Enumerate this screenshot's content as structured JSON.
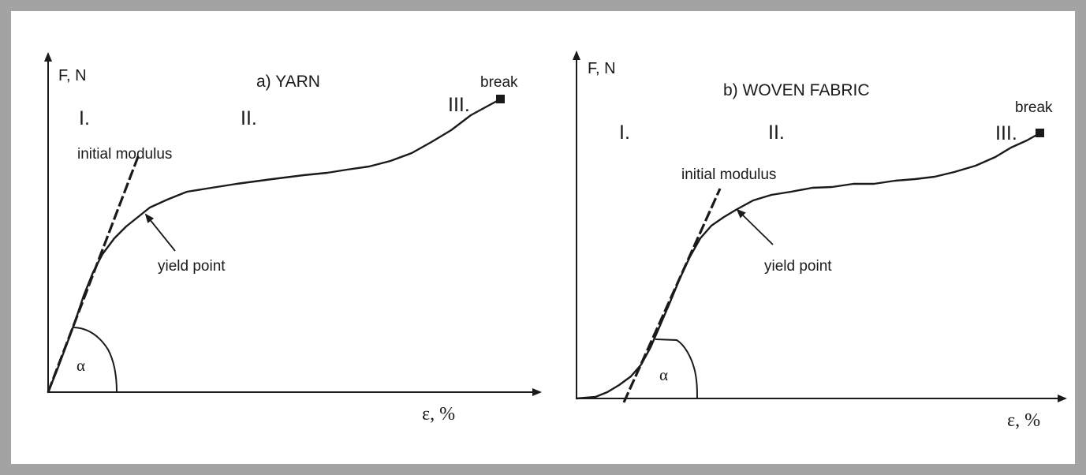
{
  "chart_data": [
    {
      "type": "line",
      "title": "a)  YARN",
      "ylabel": "F, N",
      "xlabel": "ε, %",
      "grid": false,
      "regions": [
        "I.",
        "II.",
        "III."
      ],
      "break_label": "break",
      "modulus_label": "initial modulus",
      "yield_label": "yield point",
      "angle_label": "α"
    },
    {
      "type": "line",
      "title": "b)  WOVEN FABRIC",
      "ylabel": "F, N",
      "xlabel": "ε, %",
      "grid": false,
      "regions": [
        "I.",
        "II.",
        "III."
      ],
      "break_label": "break",
      "modulus_label": "initial modulus",
      "yield_label": "yield point",
      "angle_label": "α"
    }
  ]
}
